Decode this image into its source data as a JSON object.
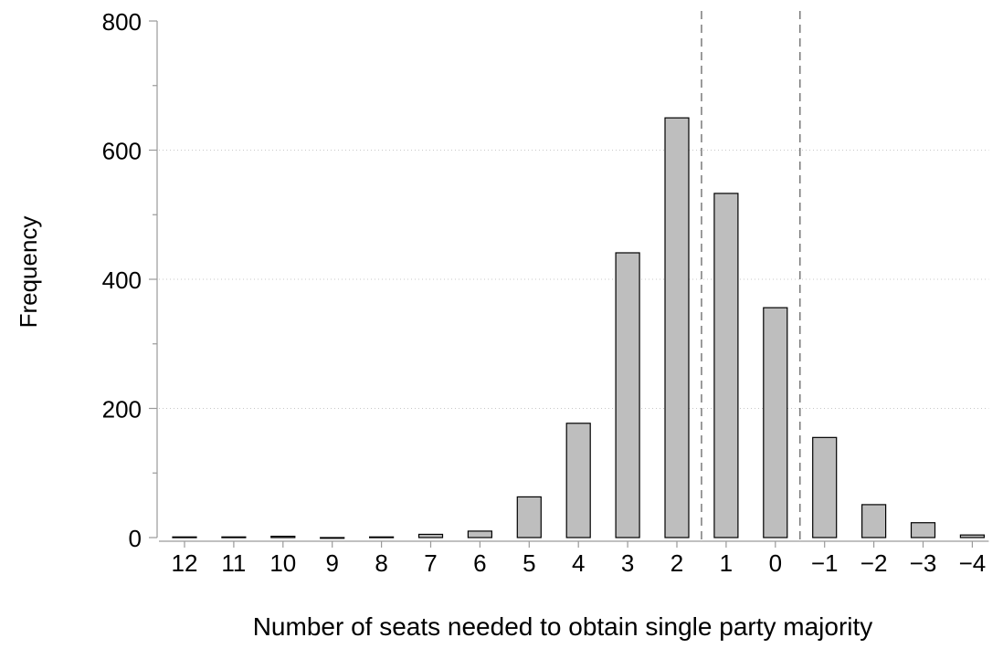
{
  "chart_data": {
    "type": "bar",
    "title": "",
    "xlabel": "Number of seats needed to obtain single party majority",
    "ylabel": "Frequency",
    "categories": [
      "12",
      "11",
      "10",
      "9",
      "8",
      "7",
      "6",
      "5",
      "4",
      "3",
      "2",
      "1",
      "0",
      "−1",
      "−2",
      "−3",
      "−4"
    ],
    "values": [
      1,
      1,
      2,
      0,
      1,
      5,
      10,
      63,
      177,
      441,
      650,
      533,
      356,
      155,
      51,
      23,
      4
    ],
    "ylim": [
      0,
      800
    ],
    "yticks": [
      "0",
      "200",
      "400",
      "600",
      "800"
    ],
    "grid": "horizontal dotted",
    "reference_lines": [
      {
        "between": [
          "2",
          "1"
        ],
        "style": "dashed"
      },
      {
        "between": [
          "0",
          "−1"
        ],
        "style": "dashed"
      }
    ],
    "bar_color": "#bebebe",
    "bar_edge_color": "#000000"
  }
}
